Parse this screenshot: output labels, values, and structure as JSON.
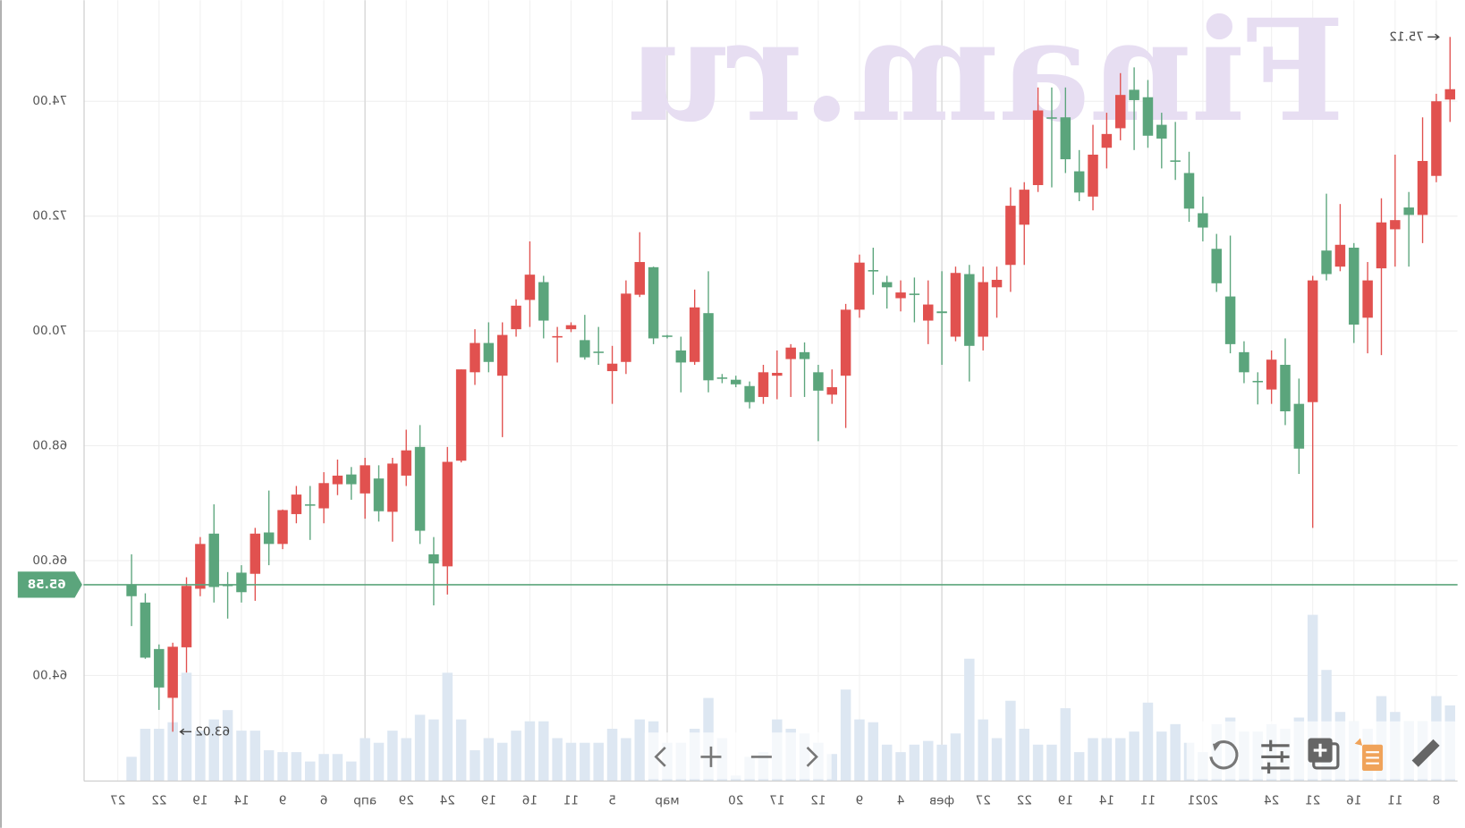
{
  "chart_data": {
    "type": "candlestick",
    "watermark": "Finam.ru",
    "ylim": [
      62.16,
      75.76
    ],
    "yticks": [
      {
        "value": 64,
        "label": "64.00"
      },
      {
        "value": 66,
        "label": "66.00"
      },
      {
        "value": 68,
        "label": "68.00"
      },
      {
        "value": 70,
        "label": "70.00"
      },
      {
        "value": 72,
        "label": "72.00"
      },
      {
        "value": 74,
        "label": "74.00"
      }
    ],
    "xlim": [
      -0.5,
      99.5
    ],
    "xticks": [
      {
        "value": 1,
        "label": "8"
      },
      {
        "value": 4,
        "label": "11"
      },
      {
        "value": 7,
        "label": "16"
      },
      {
        "value": 10,
        "label": "21"
      },
      {
        "value": 13,
        "label": "24"
      },
      {
        "value": 18,
        "label": "2021"
      },
      {
        "value": 22,
        "label": "11"
      },
      {
        "value": 25,
        "label": "14"
      },
      {
        "value": 28,
        "label": "19"
      },
      {
        "value": 31,
        "label": "22"
      },
      {
        "value": 34,
        "label": "27"
      },
      {
        "value": 37,
        "label": "фев"
      },
      {
        "value": 40,
        "label": "4"
      },
      {
        "value": 43,
        "label": "9"
      },
      {
        "value": 46,
        "label": "12"
      },
      {
        "value": 49,
        "label": "17"
      },
      {
        "value": 52,
        "label": "20"
      },
      {
        "value": 57,
        "label": "мар"
      },
      {
        "value": 61,
        "label": "5"
      },
      {
        "value": 64,
        "label": "11"
      },
      {
        "value": 67,
        "label": "16"
      },
      {
        "value": 70,
        "label": "19"
      },
      {
        "value": 73,
        "label": "24"
      },
      {
        "value": 76,
        "label": "29"
      },
      {
        "value": 79,
        "label": "апр"
      },
      {
        "value": 82,
        "label": "6"
      },
      {
        "value": 85,
        "label": "9"
      },
      {
        "value": 88,
        "label": "14"
      },
      {
        "value": 91,
        "label": "19"
      },
      {
        "value": 94,
        "label": "22"
      },
      {
        "value": 97,
        "label": "27"
      }
    ],
    "open": [
      74.21,
      74.0,
      72.96,
      72.02,
      71.93,
      71.89,
      70.88,
      70.11,
      71.5,
      70.99,
      70.88,
      67.95,
      68.6,
      69.5,
      69.11,
      69.28,
      69.77,
      70.83,
      71.8,
      72.13,
      72.95,
      73.35,
      73.4,
      74.02,
      74.11,
      73.43,
      73.07,
      72.41,
      72.99,
      73.7,
      73.84,
      72.46,
      72.18,
      70.89,
      70.85,
      69.74,
      71.01,
      70.31,
      70.46,
      70.63,
      70.67,
      70.76,
      71.04,
      71.19,
      70.37,
      69.02,
      68.96,
      69.51,
      69.71,
      69.27,
      69.28,
      68.76,
      69.07,
      69.17,
      69.14,
      70.41,
      69.45,
      69.9,
      69.87,
      71.2,
      70.65,
      69.43,
      69.62,
      69.54,
      70.1,
      69.91,
      70.18,
      70.98,
      70.44,
      69.93,
      69.46,
      69.79,
      69.33,
      67.72,
      65.95,
      66.52,
      67.92,
      67.69,
      66.86,
      67.66,
      67.33,
      67.48,
      67.35,
      66.96,
      67.15,
      66.88,
      66.29,
      66.47,
      65.45,
      65.56,
      65.54,
      66.29,
      65.56,
      64.5,
      63.79,
      64.31,
      65.38
    ],
    "high": [
      75.12,
      74.13,
      73.72,
      72.42,
      73.07,
      72.31,
      71.2,
      71.53,
      72.21,
      72.39,
      70.96,
      69.17,
      69.87,
      69.66,
      69.28,
      69.82,
      71.66,
      71.69,
      72.34,
      73.12,
      73.64,
      73.8,
      74.37,
      74.59,
      74.49,
      73.8,
      73.59,
      73.15,
      74.24,
      74.24,
      74.24,
      72.59,
      72.5,
      71.12,
      71.12,
      71.15,
      71.12,
      71.04,
      70.88,
      70.93,
      70.88,
      70.96,
      71.45,
      71.33,
      70.47,
      69.33,
      69.41,
      69.8,
      69.77,
      69.66,
      69.41,
      69.12,
      69.22,
      69.25,
      71.04,
      70.72,
      69.9,
      69.93,
      71.12,
      71.72,
      70.88,
      69.74,
      70.07,
      70.28,
      70.15,
      70.07,
      70.96,
      71.56,
      70.55,
      70.15,
      70.15,
      70.03,
      69.33,
      67.98,
      66.41,
      68.36,
      68.28,
      67.79,
      67.66,
      67.79,
      67.63,
      67.76,
      67.54,
      67.3,
      67.3,
      66.89,
      67.22,
      66.57,
      65.92,
      65.8,
      66.98,
      66.41,
      65.71,
      64.57,
      64.54,
      65.43,
      66.11
    ],
    "low": [
      73.64,
      72.59,
      71.53,
      71.12,
      71.12,
      69.58,
      69.61,
      69.79,
      71.04,
      70.88,
      66.57,
      67.51,
      68.36,
      68.73,
      68.72,
      69.09,
      69.61,
      70.68,
      71.56,
      71.9,
      72.63,
      72.83,
      73.19,
      73.15,
      73.32,
      72.83,
      72.1,
      72.26,
      72.75,
      72.5,
      72.42,
      71.15,
      70.68,
      70.23,
      69.66,
      69.12,
      69.82,
      69.41,
      69.77,
      70.15,
      70.34,
      70.39,
      70.63,
      70.23,
      68.31,
      68.73,
      68.08,
      68.85,
      68.85,
      68.81,
      68.73,
      68.65,
      69.02,
      69.09,
      68.93,
      69.41,
      68.93,
      69.87,
      69.77,
      70.59,
      69.25,
      68.73,
      69.41,
      69.5,
      69.98,
      69.45,
      69.87,
      70.07,
      69.9,
      68.15,
      69.28,
      69.06,
      67.71,
      65.41,
      65.22,
      66.29,
      67.3,
      66.33,
      66.68,
      66.73,
      67.06,
      67.14,
      66.65,
      66.36,
      66.65,
      66.2,
      65.92,
      65.3,
      65.27,
      64.99,
      65.27,
      65.38,
      64.05,
      63.02,
      63.4,
      64.29,
      64.86
    ],
    "close": [
      74.03,
      72.7,
      72.02,
      72.15,
      71.77,
      71.09,
      70.23,
      71.45,
      71.12,
      71.4,
      68.76,
      68.73,
      69.41,
      68.98,
      69.13,
      69.63,
      70.6,
      71.43,
      72.05,
      72.75,
      72.97,
      73.59,
      74.07,
      74.2,
      73.53,
      73.19,
      72.34,
      72.78,
      73.72,
      73.72,
      72.54,
      71.85,
      71.15,
      70.76,
      69.9,
      70.99,
      69.9,
      70.34,
      70.18,
      70.65,
      70.57,
      70.85,
      71.06,
      70.37,
      69.22,
      68.89,
      69.28,
      69.63,
      69.51,
      69.22,
      68.85,
      69.04,
      69.15,
      69.19,
      70.31,
      69.46,
      69.66,
      69.92,
      71.11,
      70.63,
      69.46,
      69.3,
      69.64,
      69.84,
      70.03,
      69.89,
      70.85,
      70.54,
      70.03,
      69.22,
      69.79,
      69.28,
      67.74,
      65.9,
      66.11,
      67.98,
      67.48,
      66.85,
      67.43,
      67.17,
      67.5,
      67.33,
      66.91,
      66.98,
      66.81,
      66.29,
      66.49,
      65.77,
      65.79,
      65.58,
      66.47,
      65.51,
      64.49,
      63.61,
      64.46,
      65.27,
      65.58
    ],
    "volume": [
      81,
      91,
      64,
      64,
      74,
      91,
      56,
      64,
      74,
      119,
      178,
      68,
      56,
      61,
      53,
      53,
      68,
      61,
      31,
      41,
      61,
      53,
      84,
      53,
      46,
      46,
      46,
      31,
      78,
      39,
      39,
      56,
      86,
      46,
      66,
      131,
      51,
      39,
      43,
      39,
      31,
      39,
      63,
      66,
      98,
      29,
      41,
      51,
      56,
      66,
      31,
      26,
      6,
      46,
      89,
      56,
      41,
      41,
      64,
      66,
      46,
      56,
      41,
      41,
      41,
      46,
      64,
      64,
      54,
      41,
      46,
      33,
      66,
      116,
      66,
      71,
      46,
      54,
      41,
      46,
      21,
      29,
      29,
      21,
      31,
      31,
      33,
      54,
      54,
      76,
      66,
      54,
      116,
      63,
      56,
      56,
      26
    ],
    "up_color": "#5ba57c",
    "down_color": "#e1514f",
    "volume_color": "#dde7f2",
    "last_price": 65.58,
    "high_marker": 75.12,
    "low_marker": 63.02,
    "grid": true
  }
}
